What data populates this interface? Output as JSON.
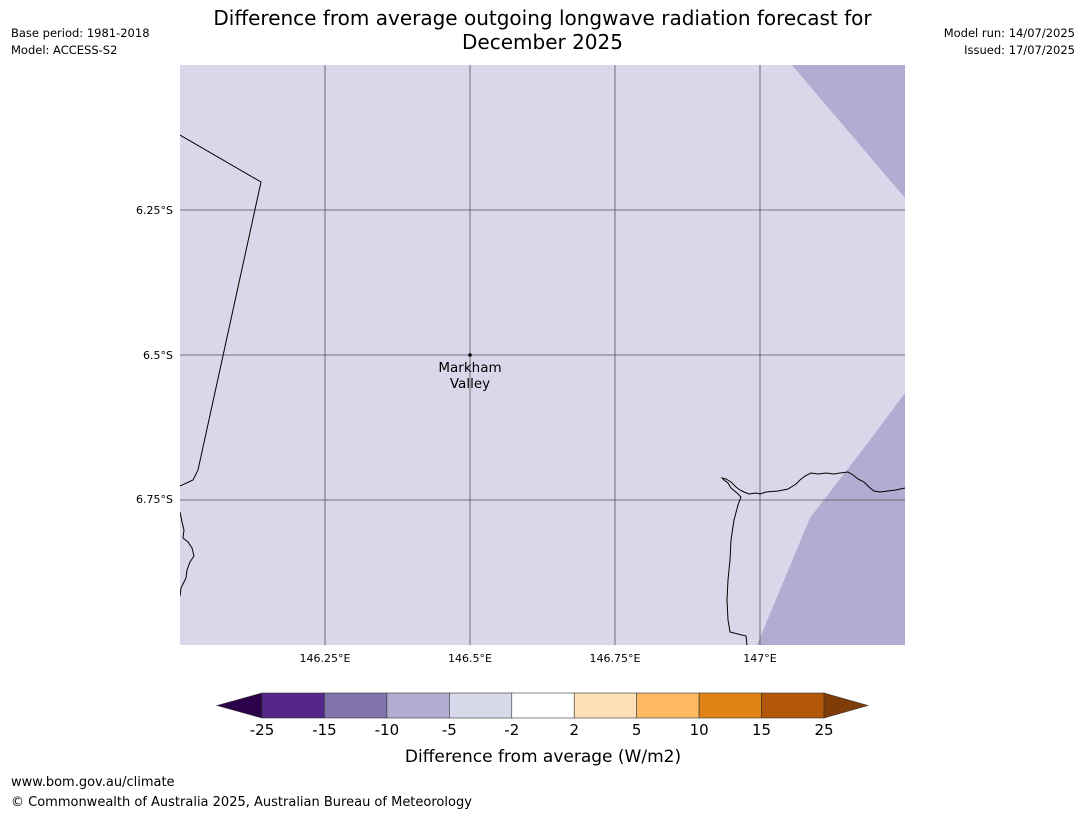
{
  "title_line1": "Difference from average outgoing longwave radiation forecast for",
  "title_line2": "December 2025",
  "meta_left": {
    "base_period": "Base period: 1981-2018",
    "model": "Model: ACCESS-S2"
  },
  "meta_right": {
    "model_run": "Model run: 14/07/2025",
    "issued": "Issued: 17/07/2025"
  },
  "map": {
    "lat_labels": [
      "6.25°S",
      "6.5°S",
      "6.75°S"
    ],
    "lon_labels": [
      "146.25°E",
      "146.5°E",
      "146.75°E",
      "147°E"
    ],
    "place": {
      "name_line1": "Markham",
      "name_line2": "Valley",
      "lat": -6.5,
      "lon": 146.5
    },
    "fill_colors": {
      "band_-5_-2": "#d8d8ea",
      "band_-10_-5": "#b2abd2"
    }
  },
  "colorbar": {
    "title": "Difference from average (W/m2)",
    "tick_labels": [
      "-25",
      "-15",
      "-10",
      "-5",
      "-2",
      "2",
      "5",
      "10",
      "15",
      "25"
    ],
    "colors": {
      "under": "#2d004b",
      "bands": [
        "#542788",
        "#8073ac",
        "#b2abd2",
        "#d8daeb",
        "#ffffff",
        "#fee0b6",
        "#fdb863",
        "#e08214",
        "#b35806"
      ],
      "over": "#7f3b08"
    }
  },
  "footer": {
    "url": "www.bom.gov.au/climate",
    "copyright": "© Commonwealth of Australia 2025, Australian Bureau of Meteorology"
  }
}
